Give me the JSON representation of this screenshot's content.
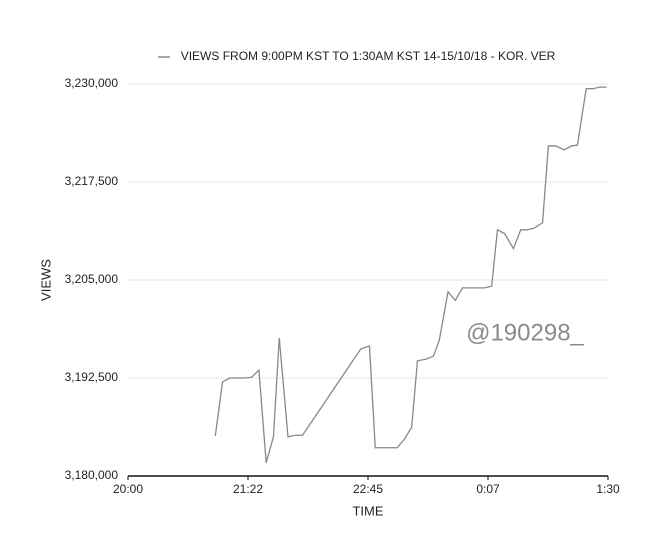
{
  "chart_data": {
    "type": "line",
    "xlabel": "TIME",
    "ylabel": "VIEWS",
    "annotation": "@190298_",
    "grid": true,
    "legend": "top",
    "x": [
      60,
      65,
      70,
      80,
      85,
      90,
      95,
      100,
      104,
      110,
      115,
      120,
      160,
      166,
      170,
      185,
      190,
      195,
      199,
      205,
      210,
      214,
      220,
      225,
      230,
      245,
      250,
      254,
      259,
      265,
      270,
      274,
      279,
      285,
      289,
      294,
      300,
      305,
      309,
      315,
      320,
      324,
      329
    ],
    "series": [
      {
        "name": "VIEWS FROM 9:00PM KST TO 1:30AM KST 14-15/10/18 - KOR. VER",
        "color": "#888888",
        "values": [
          3185100,
          3192000,
          3192500,
          3192500,
          3192600,
          3193500,
          3181700,
          3185000,
          3197600,
          3185000,
          3185200,
          3185200,
          3196200,
          3196600,
          3183600,
          3183600,
          3184700,
          3186200,
          3194700,
          3194900,
          3195300,
          3197300,
          3203500,
          3202400,
          3204000,
          3204000,
          3204200,
          3211400,
          3210900,
          3209000,
          3211400,
          3211400,
          3211600,
          3212300,
          3222100,
          3222100,
          3221600,
          3222100,
          3222200,
          3229400,
          3229400,
          3229600,
          3229600
        ]
      }
    ],
    "xlim": [
      0,
      330
    ],
    "xticks": [
      {
        "value": 0,
        "label": "20:00"
      },
      {
        "value": 82.5,
        "label": "21:22"
      },
      {
        "value": 165,
        "label": "22:45"
      },
      {
        "value": 247.5,
        "label": "0:07"
      },
      {
        "value": 330,
        "label": "1:30"
      }
    ],
    "ylim": [
      3180000,
      3230000
    ],
    "yticks": [
      {
        "value": 3180000,
        "label": "3,180,000"
      },
      {
        "value": 3192500,
        "label": "3,192,500"
      },
      {
        "value": 3205000,
        "label": "3,205,000"
      },
      {
        "value": 3217500,
        "label": "3,217,500"
      },
      {
        "value": 3230000,
        "label": "3,230,000"
      }
    ]
  }
}
